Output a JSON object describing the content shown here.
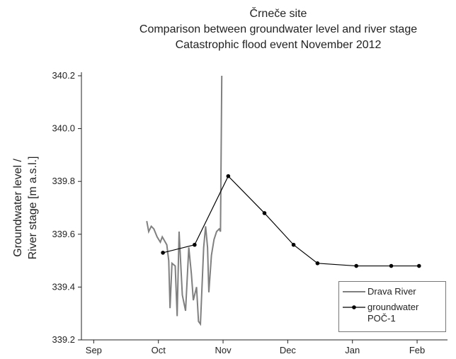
{
  "chart_data": {
    "type": "line",
    "title": [
      "Črneče site",
      "Comparison between groundwater level and river stage",
      "Catastrophic flood event November 2012"
    ],
    "ylabel": [
      "Groundwater level /",
      "River stage [m a.s.l.]"
    ],
    "xlim": [
      -0.19,
      5.47
    ],
    "xticks": [
      {
        "value": 0,
        "label": "Sep"
      },
      {
        "value": 1,
        "label": "Oct"
      },
      {
        "value": 2,
        "label": "Nov"
      },
      {
        "value": 3,
        "label": "Dec"
      },
      {
        "value": 4,
        "label": "Jan"
      },
      {
        "value": 5,
        "label": "Feb"
      }
    ],
    "ylim": [
      339.2,
      340.2
    ],
    "yticks": [
      339.2,
      339.4,
      339.6,
      339.8,
      {
        "value": 340,
        "label": "340.0"
      },
      340.2
    ],
    "legend": "lower right",
    "series": [
      {
        "name": "Drava River",
        "color": "#808080",
        "marker": false,
        "x": [
          0.82,
          0.85,
          0.89,
          0.93,
          0.98,
          1.03,
          1.06,
          1.13,
          1.16,
          1.18,
          1.21,
          1.26,
          1.29,
          1.32,
          1.37,
          1.42,
          1.47,
          1.51,
          1.54,
          1.59,
          1.62,
          1.65,
          1.7,
          1.73,
          1.76,
          1.78,
          1.82,
          1.86,
          1.9,
          1.94,
          1.96,
          1.98
        ],
        "values": [
          339.65,
          339.61,
          339.63,
          339.62,
          339.59,
          339.57,
          339.59,
          339.56,
          339.5,
          339.32,
          339.49,
          339.48,
          339.29,
          339.61,
          339.37,
          339.31,
          339.55,
          339.45,
          339.35,
          339.4,
          339.27,
          339.26,
          339.55,
          339.63,
          339.55,
          339.38,
          339.52,
          339.58,
          339.61,
          339.62,
          339.61,
          340.2
        ]
      },
      {
        "name": "groundwater\nPOČ-1",
        "color": "#000000",
        "marker": true,
        "x": [
          1.07,
          1.56,
          2.08,
          2.64,
          3.09,
          3.46,
          4.06,
          4.6,
          5.03
        ],
        "values": [
          339.53,
          339.56,
          339.82,
          339.68,
          339.56,
          339.49,
          339.48,
          339.48,
          339.48
        ]
      }
    ]
  }
}
